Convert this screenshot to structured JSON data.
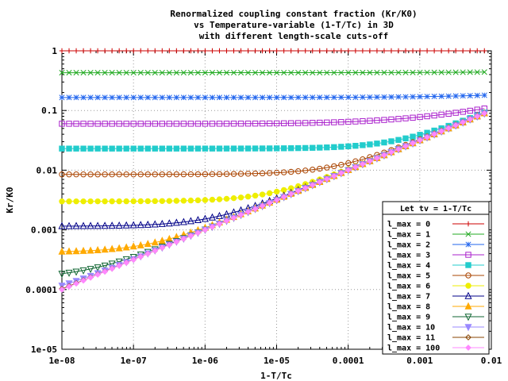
{
  "chart_data": {
    "type": "line",
    "title": [
      "Renormalized coupling constant fraction (Kr/K0)",
      "vs Temperature-variable (1-T/Tc) in 3D",
      "with different length-scale cuts-off"
    ],
    "xlabel": "1-T/Tc",
    "ylabel": "Kr/K0",
    "x_scale": "log",
    "y_scale": "log",
    "xlim": [
      1e-08,
      0.01
    ],
    "ylim": [
      1e-05,
      1
    ],
    "x_tick_labels": [
      "1e-08",
      "1e-07",
      "1e-06",
      "1e-05",
      "0.0001",
      "0.001",
      "0.01"
    ],
    "x_tick_values": [
      1e-08,
      1e-07,
      1e-06,
      1e-05,
      0.0001,
      0.001,
      0.01
    ],
    "y_tick_labels": [
      "1e-05",
      "0.0001",
      "0.001",
      "0.01",
      "0.1",
      "1"
    ],
    "y_tick_values": [
      1e-05,
      0.0001,
      0.001,
      0.01,
      0.1,
      1
    ],
    "grid": true,
    "legend_title": "Let tv = 1-T/Tc",
    "legend_position": "bottom-right",
    "x_sample_range": [
      1e-08,
      0.008
    ],
    "samples": 60,
    "series": [
      {
        "name": "l_max = 0",
        "color": "#cc0000",
        "marker": "plus",
        "plateau": 1.0,
        "tail": null
      },
      {
        "name": "l_max = 1",
        "color": "#22aa22",
        "marker": "cross",
        "plateau": 0.43,
        "tail": 0.44
      },
      {
        "name": "l_max = 2",
        "color": "#2266ee",
        "marker": "star",
        "plateau": 0.165,
        "tail": 0.18
      },
      {
        "name": "l_max = 3",
        "color": "#aa22cc",
        "marker": "square",
        "plateau": 0.06,
        "tail": 0.108
      },
      {
        "name": "l_max = 4",
        "color": "#22cccc",
        "marker": "fsquare",
        "plateau": 0.023,
        "tail": 0.098
      },
      {
        "name": "l_max = 5",
        "color": "#aa4400",
        "marker": "circle",
        "plateau": 0.0085,
        "tail": 0.095
      },
      {
        "name": "l_max = 6",
        "color": "#eeee00",
        "marker": "fcircle",
        "plateau": 0.003,
        "tail": 0.093
      },
      {
        "name": "l_max = 7",
        "color": "#000088",
        "marker": "triangle",
        "plateau": 0.00115,
        "tail": 0.092
      },
      {
        "name": "l_max = 8",
        "color": "#ffaa00",
        "marker": "ftriangle",
        "plateau": 0.00042,
        "tail": 0.091
      },
      {
        "name": "l_max = 9",
        "color": "#116633",
        "marker": "dtriangle",
        "plateau": 0.000155,
        "tail": 0.09
      },
      {
        "name": "l_max = 10",
        "color": "#9988ff",
        "marker": "fdtriangle",
        "plateau": 6e-05,
        "tail": 0.09
      },
      {
        "name": "l_max = 11",
        "color": "#884400",
        "marker": "diamond",
        "plateau": 2.3e-05,
        "tail": 0.09
      },
      {
        "name": "l_max = 100",
        "color": "#ff88ff",
        "marker": "fdiamond",
        "plateau": 0,
        "tail": 0.09
      }
    ]
  }
}
